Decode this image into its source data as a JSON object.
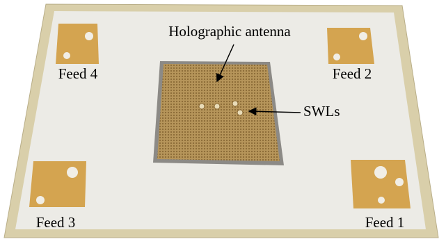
{
  "labels": {
    "antenna": "Holographic antenna",
    "swls": "SWLs",
    "feed1": "Feed 1",
    "feed2": "Feed 2",
    "feed3": "Feed 3",
    "feed4": "Feed 4"
  }
}
